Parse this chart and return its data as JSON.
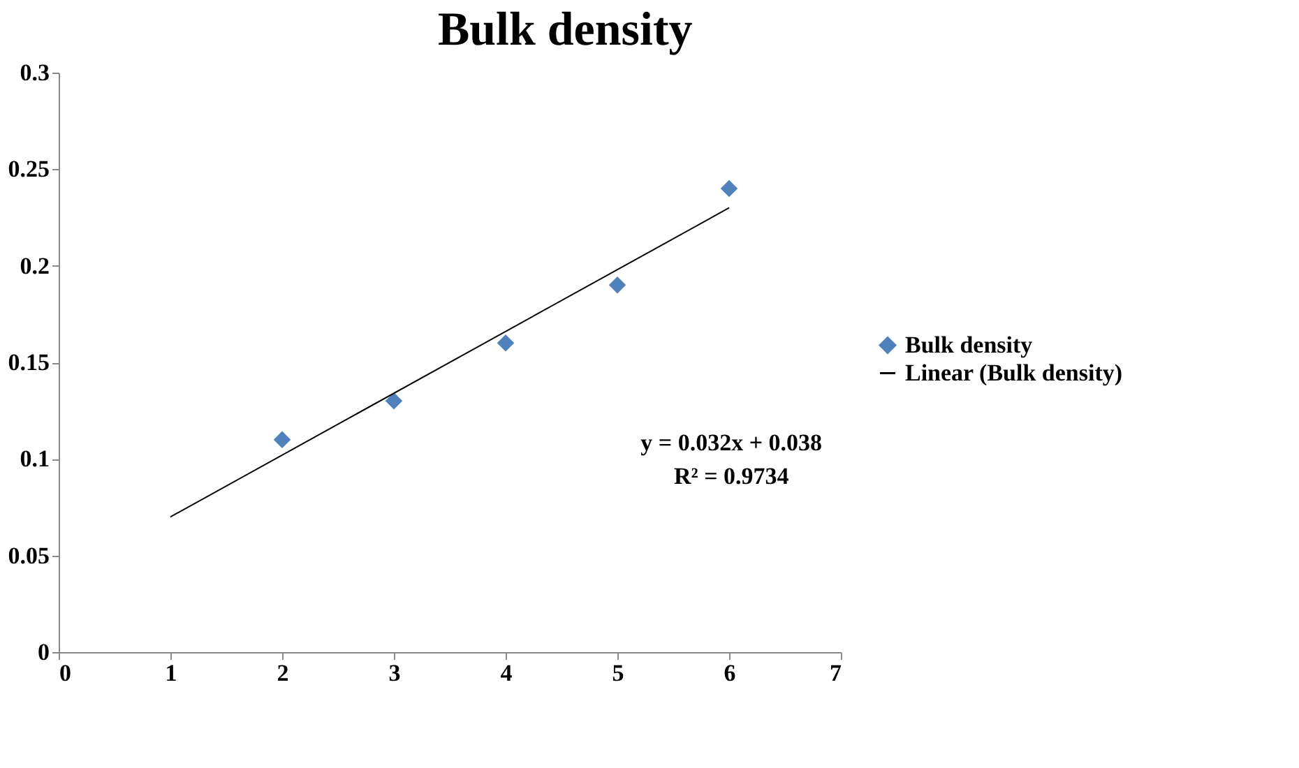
{
  "chart_data": {
    "type": "scatter",
    "title": "Bulk density",
    "series": [
      {
        "name": "Bulk density",
        "color": "#4f81bd",
        "marker": "diamond",
        "x": [
          2,
          3,
          4,
          5,
          6
        ],
        "values": [
          0.11,
          0.13,
          0.16,
          0.19,
          0.24
        ]
      },
      {
        "name": "Linear (Bulk density)",
        "type": "line",
        "color": "#000000",
        "marker": "none",
        "line_style": "solid",
        "x": [
          1,
          6
        ],
        "values": [
          0.07,
          0.23
        ]
      }
    ],
    "annotations": [
      "y = 0.032x + 0.038",
      "R² = 0.9734"
    ],
    "xlim": [
      0,
      7
    ],
    "xticks": [
      0,
      1,
      2,
      3,
      4,
      5,
      6,
      7
    ],
    "ylim": [
      0,
      0.3
    ],
    "yticks": [
      0,
      0.05,
      0.1,
      0.15,
      0.2,
      0.25,
      0.3
    ],
    "grid": false,
    "legend": "right"
  }
}
